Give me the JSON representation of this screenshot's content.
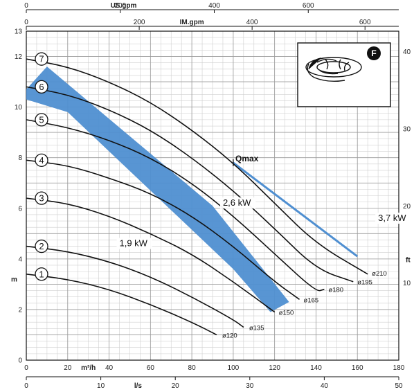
{
  "chart_data": {
    "type": "line",
    "axes": {
      "y_left": {
        "label": "m",
        "min": 0,
        "max": 13,
        "ticks": [
          0,
          2,
          4,
          6,
          8,
          10,
          12,
          13
        ]
      },
      "y_right": {
        "label": "ft",
        "ticks": [
          10,
          20,
          30,
          40
        ]
      },
      "x_m3h": {
        "label": "m³/h",
        "min": 0,
        "max": 180,
        "ticks": [
          0,
          20,
          40,
          60,
          80,
          100,
          120,
          140,
          160,
          180
        ]
      },
      "x_ls": {
        "label": "l/s",
        "ticks": [
          0,
          10,
          20,
          30,
          40,
          50
        ]
      },
      "x_usgpm": {
        "label": "US.gpm",
        "ticks": [
          0,
          200,
          400,
          600
        ]
      },
      "x_imgpm": {
        "label": "IM.gpm",
        "ticks": [
          0,
          200,
          400,
          600
        ]
      }
    },
    "series": [
      {
        "name": "1",
        "label": "ø120",
        "points": [
          [
            0,
            3.4
          ],
          [
            20,
            3.2
          ],
          [
            40,
            2.8
          ],
          [
            60,
            2.2
          ],
          [
            80,
            1.5
          ],
          [
            92,
            1.0
          ]
        ]
      },
      {
        "name": "2",
        "label": "ø135",
        "points": [
          [
            0,
            4.5
          ],
          [
            20,
            4.3
          ],
          [
            40,
            3.9
          ],
          [
            60,
            3.3
          ],
          [
            80,
            2.5
          ],
          [
            100,
            1.6
          ],
          [
            105,
            1.3
          ]
        ]
      },
      {
        "name": "3",
        "label": "ø150",
        "points": [
          [
            0,
            6.4
          ],
          [
            20,
            6.2
          ],
          [
            40,
            5.7
          ],
          [
            60,
            5.0
          ],
          [
            80,
            4.2
          ],
          [
            100,
            3.1
          ],
          [
            120,
            1.9
          ]
        ]
      },
      {
        "name": "4",
        "label": "ø165",
        "points": [
          [
            0,
            7.9
          ],
          [
            20,
            7.7
          ],
          [
            40,
            7.2
          ],
          [
            60,
            6.6
          ],
          [
            80,
            5.7
          ],
          [
            100,
            4.5
          ],
          [
            120,
            3.1
          ],
          [
            132,
            2.4
          ]
        ]
      },
      {
        "name": "5",
        "label": "ø180",
        "points": [
          [
            0,
            9.5
          ],
          [
            20,
            9.2
          ],
          [
            40,
            8.7
          ],
          [
            60,
            8.0
          ],
          [
            80,
            7.0
          ],
          [
            100,
            5.7
          ],
          [
            120,
            4.2
          ],
          [
            140,
            2.7
          ],
          [
            144,
            2.8
          ]
        ]
      },
      {
        "name": "6",
        "label": "ø195",
        "points": [
          [
            0,
            10.8
          ],
          [
            20,
            10.5
          ],
          [
            40,
            9.9
          ],
          [
            60,
            9.1
          ],
          [
            80,
            8.0
          ],
          [
            100,
            6.7
          ],
          [
            120,
            5.2
          ],
          [
            140,
            3.6
          ],
          [
            158,
            3.1
          ]
        ]
      },
      {
        "name": "7",
        "label": "ø210",
        "points": [
          [
            0,
            11.9
          ],
          [
            20,
            11.6
          ],
          [
            40,
            11.0
          ],
          [
            60,
            10.2
          ],
          [
            80,
            9.1
          ],
          [
            100,
            7.8
          ],
          [
            120,
            6.2
          ],
          [
            140,
            4.6
          ],
          [
            165,
            3.4
          ]
        ]
      }
    ],
    "qmax_label": "Qmax",
    "power_labels": [
      "1,9 kW",
      "2,6 kW",
      "3,7 kW"
    ],
    "badge": "F"
  }
}
